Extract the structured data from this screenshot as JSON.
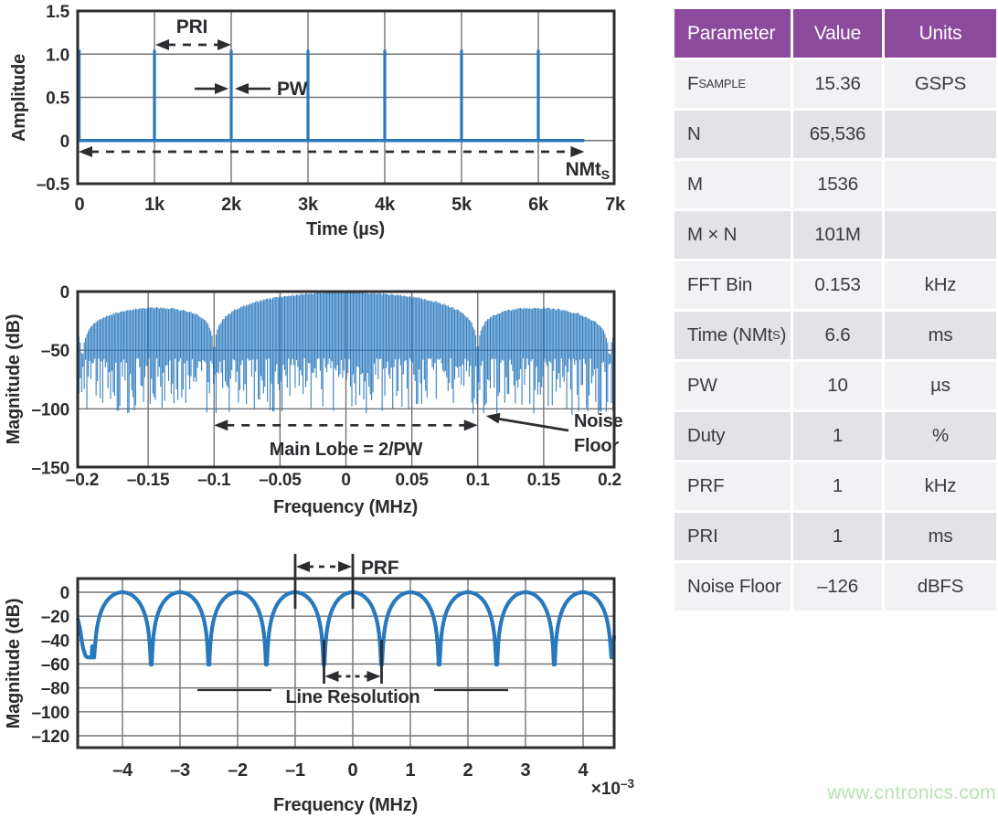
{
  "watermark": "www.cntronics.com",
  "colors": {
    "trace_blue": "#2878BE",
    "ink": "#2c2c30",
    "grid": "#737377",
    "table_header_bg": "#8c4a9c",
    "table_header_text": "#ffffff",
    "row_light": "#f2f1f4",
    "row_dark": "#e3e2e7",
    "watermark_green": "#b7e3b1"
  },
  "table": {
    "headers": [
      "Parameter",
      "Value",
      "Units"
    ],
    "rows": [
      {
        "param": "F_{SAMPLE}",
        "value": "15.36",
        "units": "GSPS"
      },
      {
        "param": "N",
        "value": "65,536",
        "units": ""
      },
      {
        "param": "M",
        "value": "1536",
        "units": ""
      },
      {
        "param": "M × N",
        "value": "101M",
        "units": ""
      },
      {
        "param": "FFT Bin",
        "value": "0.153",
        "units": "kHz"
      },
      {
        "param": "Time (NMt_{S})",
        "value": "6.6",
        "units": "ms"
      },
      {
        "param": "PW",
        "value": "10",
        "units": "µs"
      },
      {
        "param": "Duty",
        "value": "1",
        "units": "%"
      },
      {
        "param": "PRF",
        "value": "1",
        "units": "kHz"
      },
      {
        "param": "PRI",
        "value": "1",
        "units": "ms"
      },
      {
        "param": "Noise Floor",
        "value": "–126",
        "units": "dBFS"
      }
    ]
  },
  "chart_data": [
    {
      "id": "time-domain",
      "type": "line",
      "title": "",
      "xlabel": "Time (µs)",
      "ylabel": "Amplitude",
      "xlim": [
        0,
        7000
      ],
      "ylim": [
        -0.5,
        1.5
      ],
      "xticks": [
        0,
        1000,
        2000,
        3000,
        4000,
        5000,
        6000,
        7000
      ],
      "xtick_labels": [
        "0",
        "1k",
        "2k",
        "3k",
        "4k",
        "5k",
        "6k",
        "7k"
      ],
      "yticks": [
        -0.5,
        0,
        0.5,
        1.0,
        1.5
      ],
      "ytick_labels": [
        "–0.5",
        "0",
        "0.5",
        "1.0",
        "1.5"
      ],
      "grid": true,
      "series": [
        {
          "name": "pulse-train",
          "pulse_times_us": [
            0,
            1000,
            2000,
            3000,
            4000,
            5000,
            6000
          ],
          "pulse_width_us": 10,
          "pulse_amplitude": 1.05,
          "baseline_level": 0,
          "baseline_end_us": 6600
        }
      ],
      "annotations": {
        "pri": {
          "label": "PRI",
          "from_us": 1000,
          "to_us": 2000,
          "arrow_amp": 1.18,
          "label_amp": 1.35
        },
        "pw": {
          "label": "PW",
          "at_us": 2000,
          "arrow_amp": 0.6
        },
        "nmts": {
          "label": "NMt_{S}",
          "from_us": 0,
          "to_us": 6600,
          "arrow_amp": -0.13
        }
      }
    },
    {
      "id": "pulse-spectrum",
      "type": "line",
      "title": "",
      "xlabel": "Frequency (MHz)",
      "ylabel": "Magnitude (dB)",
      "xlim": [
        -0.204,
        0.204
      ],
      "ylim": [
        -150,
        0
      ],
      "xticks": [
        -0.2,
        -0.15,
        -0.1,
        -0.05,
        0,
        0.05,
        0.1,
        0.15,
        0.2
      ],
      "xtick_labels": [
        "–0.2",
        "–0.15",
        "–0.1",
        "–0.05",
        "0",
        "0.05",
        "0.1",
        "0.15",
        "0.2"
      ],
      "yticks": [
        0,
        -50,
        -100,
        -150
      ],
      "ytick_labels": [
        "0",
        "–50",
        "–100",
        "–150"
      ],
      "grid": true,
      "content": {
        "envelope": "abs-sinc of pulse, PW = 10 µs",
        "envelope_peak_dB": 0,
        "main_lobe_nulls_MHz": [
          -0.1,
          0.1
        ],
        "second_nulls_MHz": [
          -0.2,
          0.2
        ],
        "sidelobe_peak_dB": -13.3,
        "spectral_line_spacing_MHz": 0.001,
        "noise_floor_dB_range": [
          -57,
          -105
        ]
      },
      "annotations": {
        "main_lobe": {
          "label": "Main Lobe = 2/PW",
          "from_MHz": -0.1,
          "to_MHz": 0.1,
          "arrow_dB": -114,
          "label_dB": -135
        },
        "noise_floor": {
          "label_lines": [
            "Noise",
            "Floor"
          ],
          "points_to_MHz": 0.1
        }
      }
    },
    {
      "id": "fine-spectrum",
      "type": "line",
      "title": "",
      "xlabel": "Frequency (MHz)",
      "x_scale": {
        "mant": "×10",
        "exp": "–3"
      },
      "ylabel": "Magnitude (dB)",
      "xlim": [
        -4.78,
        4.54
      ],
      "ylim": [
        -133,
        11
      ],
      "xticks": [
        -4,
        -3,
        -2,
        -1,
        0,
        1,
        2,
        3,
        4
      ],
      "xtick_labels": [
        "–4",
        "–3",
        "–2",
        "–1",
        "0",
        "1",
        "2",
        "3",
        "4"
      ],
      "yticks": [
        0,
        -20,
        -40,
        -60,
        -80,
        -100,
        -120
      ],
      "ytick_labels": [
        "0",
        "–20",
        "–40",
        "–60",
        "–80",
        "–100",
        "–120"
      ],
      "grid": true,
      "content": {
        "lobe_peaks_at": [
          -4,
          -3,
          -2,
          -1,
          0,
          1,
          2,
          3,
          4
        ],
        "peak_dB": 0,
        "nulls_at_half_integers_dB": -60,
        "lobe_spacing_kHz": 1
      },
      "annotations": {
        "prf": {
          "label": "PRF",
          "from": -1,
          "to": 0
        },
        "line_resolution": {
          "label": "Line Resolution",
          "from": -0.5,
          "to": 0.5
        }
      }
    }
  ]
}
